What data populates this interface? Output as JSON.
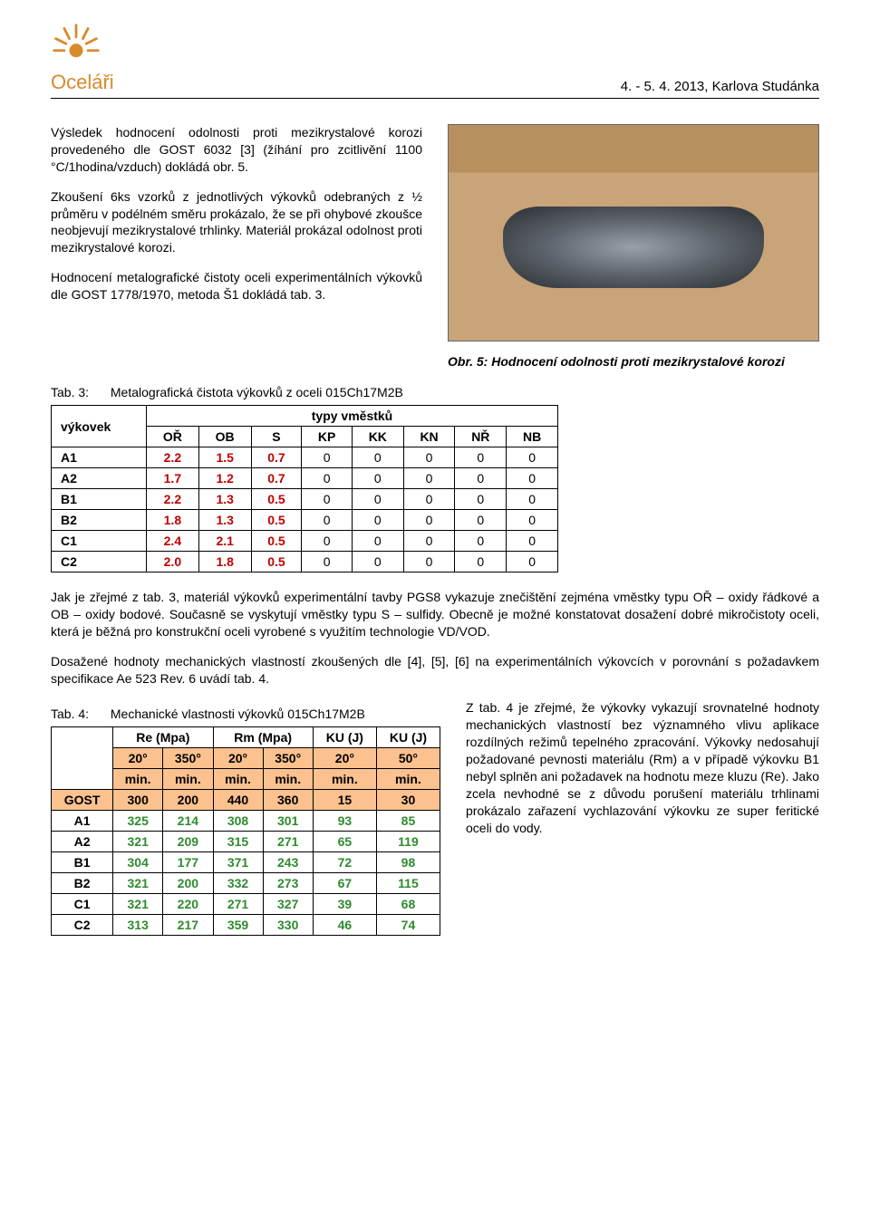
{
  "header": {
    "brand": "Oceláři",
    "conference": "4. - 5. 4. 2013, Karlova Studánka"
  },
  "p1": "Výsledek hodnocení odolnosti proti mezikrystalové korozi provedeného dle GOST 6032 [3] (žíhání pro zcitlivění 1100 °C/1hodina/vzduch) dokládá obr. 5.",
  "p2": "Zkoušení 6ks vzorků z jednotlivých výkovků odebraných z ½ průměru v podélném směru prokázalo, že se při ohybové zkoušce neobjevují mezikrystalové trhlinky. Materiál prokázal odolnost proti mezikrystalové korozi.",
  "p3": "Hodnocení metalografické čistoty oceli experimentálních výkovků dle GOST 1778/1970, metoda Š1 dokládá tab. 3.",
  "fig5_caption": "Obr. 5: Hodnocení odolnosti proti mezikrystalové korozi",
  "tab3": {
    "label_prefix": "Tab. 3:",
    "label_text": "Metalografická čistota výkovků z oceli 015Ch17M2B",
    "super_header_left": "výkovek",
    "super_header_right": "typy vměstků",
    "cols": [
      "OŘ",
      "OB",
      "S",
      "KP",
      "KK",
      "KN",
      "NŘ",
      "NB"
    ],
    "rows": [
      {
        "id": "A1",
        "vals": [
          "2.2",
          "1.5",
          "0.7",
          "0",
          "0",
          "0",
          "0",
          "0"
        ]
      },
      {
        "id": "A2",
        "vals": [
          "1.7",
          "1.2",
          "0.7",
          "0",
          "0",
          "0",
          "0",
          "0"
        ]
      },
      {
        "id": "B1",
        "vals": [
          "2.2",
          "1.3",
          "0.5",
          "0",
          "0",
          "0",
          "0",
          "0"
        ]
      },
      {
        "id": "B2",
        "vals": [
          "1.8",
          "1.3",
          "0.5",
          "0",
          "0",
          "0",
          "0",
          "0"
        ]
      },
      {
        "id": "C1",
        "vals": [
          "2.4",
          "2.1",
          "0.5",
          "0",
          "0",
          "0",
          "0",
          "0"
        ]
      },
      {
        "id": "C2",
        "vals": [
          "2.0",
          "1.8",
          "0.5",
          "0",
          "0",
          "0",
          "0",
          "0"
        ]
      }
    ],
    "red_cols": 3
  },
  "p4": "Jak je zřejmé z tab. 3, materiál výkovků experimentální tavby PGS8 vykazuje znečištění zejména vměstky typu OŘ – oxidy řádkové a OB – oxidy bodové. Současně se vyskytují vměstky typu S – sulfidy. Obecně je možné konstatovat dosažení dobré mikročistoty oceli, která je běžná pro konstrukční oceli vyrobené s využitím technologie VD/VOD.",
  "p5": "Dosažené hodnoty mechanických vlastností zkoušených dle [4], [5], [6] na experimentálních výkovcích v porovnání s požadavkem specifikace Ae 523 Rev. 6 uvádí tab. 4.",
  "tab4": {
    "label_prefix": "Tab. 4:",
    "label_text": "Mechanické vlastnosti výkovků 015Ch17M2B",
    "groups": [
      "Re (Mpa)",
      "Rm (Mpa)",
      "KU (J)",
      "KU (J)"
    ],
    "temps": [
      "20°",
      "350°",
      "20°",
      "350°",
      "20°",
      "50°"
    ],
    "mins_label": "min.",
    "gost_label": "GOST",
    "gost_vals": [
      "300",
      "200",
      "440",
      "360",
      "15",
      "30"
    ],
    "rows": [
      {
        "id": "A1",
        "vals": [
          "325",
          "214",
          "308",
          "301",
          "93",
          "85"
        ]
      },
      {
        "id": "A2",
        "vals": [
          "321",
          "209",
          "315",
          "271",
          "65",
          "119"
        ]
      },
      {
        "id": "B1",
        "vals": [
          "304",
          "177",
          "371",
          "243",
          "72",
          "98"
        ]
      },
      {
        "id": "B2",
        "vals": [
          "321",
          "200",
          "332",
          "273",
          "67",
          "115"
        ]
      },
      {
        "id": "C1",
        "vals": [
          "321",
          "220",
          "271",
          "327",
          "39",
          "68"
        ]
      },
      {
        "id": "C2",
        "vals": [
          "313",
          "217",
          "359",
          "330",
          "46",
          "74"
        ]
      }
    ]
  },
  "p6": "Z tab. 4 je zřejmé, že výkovky vykazují srovnatelné hodnoty mechanických vlastností bez významného vlivu aplikace rozdílných režimů tepelného zpracování. Výkovky nedosahují požadované pevnosti materiálu (Rm) a v případě výkovku B1 nebyl splněn ani požadavek na hodnotu meze kluzu (Re). Jako zcela nevhodné se z důvodu porušení materiálu trhlinami prokázalo zařazení vychlazování výkovku ze super feritické oceli do vody."
}
